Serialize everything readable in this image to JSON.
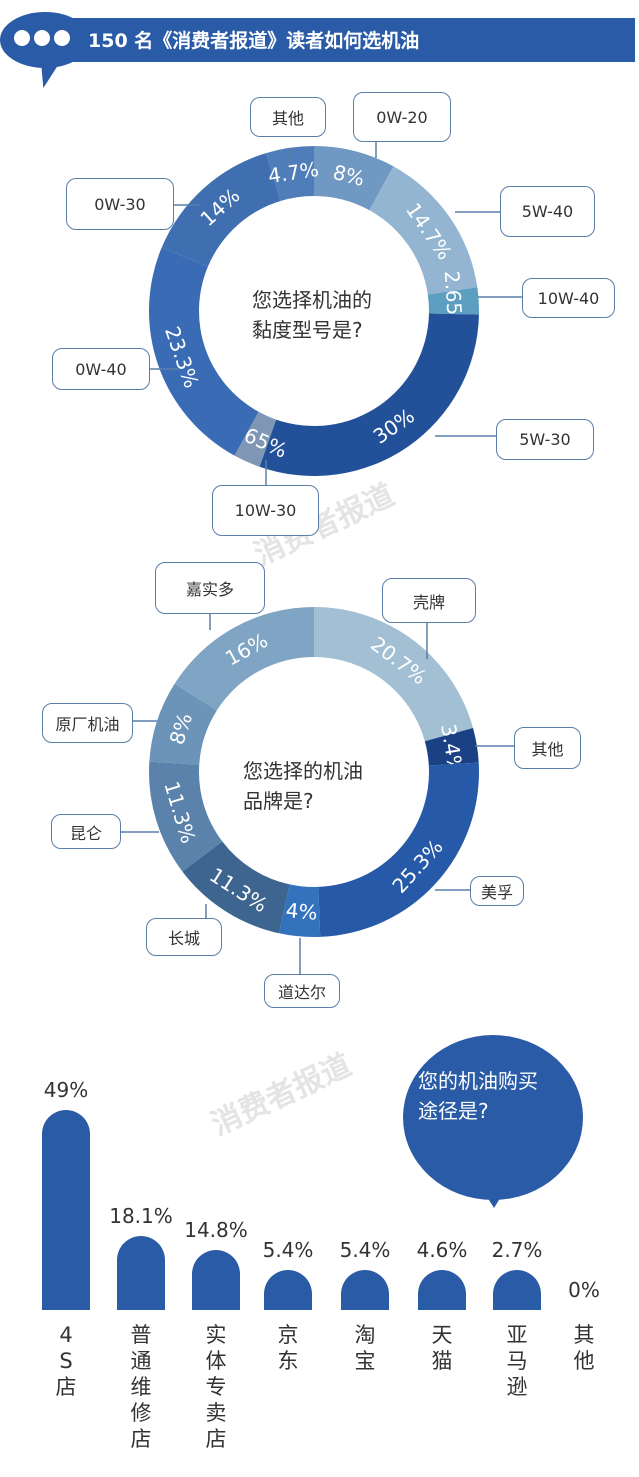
{
  "header": {
    "title": "150 名《消费者报道》读者如何选机油",
    "accent_color": "#2a5ba6"
  },
  "watermark": "消费者报道",
  "chart_data": [
    {
      "type": "pie",
      "subtype": "donut",
      "title": "您选择机油的黏度型号是?",
      "title_lines": [
        "您选择机油的",
        "黏度型号是?"
      ],
      "categories": [
        "0W-20",
        "5W-40",
        "10W-40",
        "5W-30",
        "10W-30",
        "0W-40",
        "0W-30",
        "其他"
      ],
      "values": [
        8,
        14.7,
        2.65,
        30,
        2.65,
        23.3,
        14,
        4.7
      ],
      "value_labels": [
        "8%",
        "14.7%",
        "2.65%",
        "30%",
        "2.65%",
        "23.3%",
        "14%",
        "4.7%"
      ],
      "colors": [
        "#6f98c2",
        "#93b5d2",
        "#5b9ec0",
        "#22519a",
        "#7f97b5",
        "#3a6cb6",
        "#3f6fb0",
        "#4f7db9"
      ],
      "start_angle": "top",
      "direction": "clockwise"
    },
    {
      "type": "pie",
      "subtype": "donut",
      "title": "您选择的机油品牌是?",
      "title_lines": [
        "您选择的机油",
        "品牌是?"
      ],
      "categories": [
        "壳牌",
        "其他",
        "美孚",
        "道达尔",
        "长城",
        "昆仑",
        "原厂机油",
        "嘉实多"
      ],
      "values": [
        20.7,
        3.4,
        25.3,
        4,
        11.3,
        11.3,
        8,
        16
      ],
      "value_labels": [
        "20.7%",
        "3.4%",
        "25.3%",
        "4%",
        "11.3%",
        "11.3%",
        "8%",
        "16%"
      ],
      "colors": [
        "#a3bfd3",
        "#1a4184",
        "#2659a8",
        "#3373be",
        "#3d6590",
        "#5a82ab",
        "#6c93b8",
        "#80a5c4"
      ],
      "start_angle": "top",
      "direction": "clockwise"
    },
    {
      "type": "bar",
      "title": "您的机油购买途径是?",
      "title_lines": [
        "您的机油购买",
        "途径是?"
      ],
      "categories": [
        "4S店",
        "普通维修店",
        "实体专卖店",
        "京东",
        "淘宝",
        "天猫",
        "亚马逊",
        "其他"
      ],
      "values": [
        49,
        18.1,
        14.8,
        5.4,
        5.4,
        4.6,
        2.7,
        0
      ],
      "value_labels": [
        "49%",
        "18.1%",
        "14.8%",
        "5.4%",
        "5.4%",
        "4.6%",
        "2.7%",
        "0%"
      ],
      "color": "#2a5ba6",
      "xlabel": "",
      "ylabel": "",
      "grid": false,
      "legend": "none"
    }
  ]
}
